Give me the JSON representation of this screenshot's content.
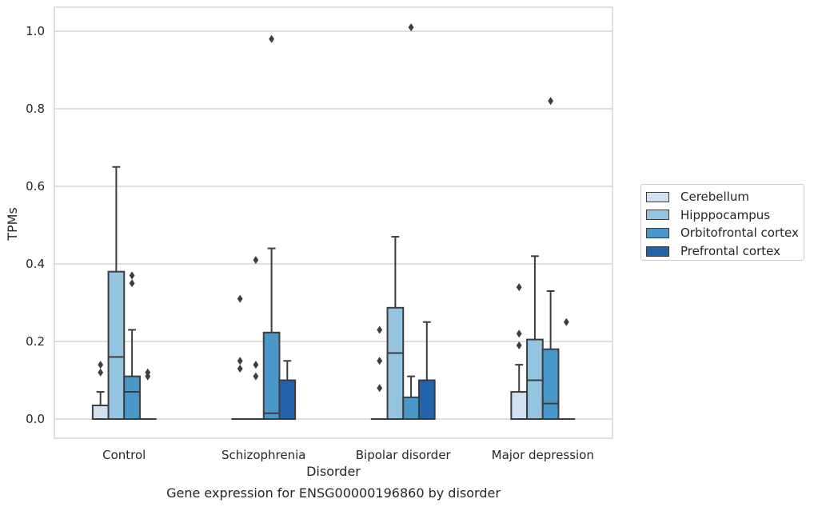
{
  "chart_data": {
    "type": "box",
    "title": "",
    "caption": "Gene expression for ENSG00000196860 by disorder",
    "xlabel": "Disorder",
    "ylabel": "TPMs",
    "ylim": [
      -0.05,
      1.06
    ],
    "yticks": [
      "0.0",
      "0.2",
      "0.4",
      "0.6",
      "0.8",
      "1.0"
    ],
    "ytick_values": [
      0.0,
      0.2,
      0.4,
      0.6,
      0.8,
      1.0
    ],
    "grid": true,
    "legend_position": "right",
    "categories": [
      "Control",
      "Schizophrenia",
      "Bipolar disorder",
      "Major depression"
    ],
    "series": [
      {
        "name": "Cerebellum",
        "color": "#d0e1f2",
        "boxes": [
          {
            "q1": 0.0,
            "median": 0.0,
            "q3": 0.035,
            "whislo": 0.0,
            "whishi": 0.07,
            "fliers": [
              0.12,
              0.14
            ]
          },
          {
            "q1": 0.0,
            "median": 0.0,
            "q3": 0.0,
            "whislo": 0.0,
            "whishi": 0.0,
            "fliers": [
              0.13,
              0.15,
              0.31
            ]
          },
          {
            "q1": 0.0,
            "median": 0.0,
            "q3": 0.0,
            "whislo": 0.0,
            "whishi": 0.0,
            "fliers": [
              0.08,
              0.15,
              0.23
            ]
          },
          {
            "q1": 0.0,
            "median": 0.0,
            "q3": 0.07,
            "whislo": 0.0,
            "whishi": 0.14,
            "fliers": [
              0.19,
              0.22,
              0.34
            ]
          }
        ]
      },
      {
        "name": "Hipppocampus",
        "color": "#94c4df",
        "boxes": [
          {
            "q1": 0.0,
            "median": 0.16,
            "q3": 0.38,
            "whislo": 0.0,
            "whishi": 0.65,
            "fliers": []
          },
          {
            "q1": 0.0,
            "median": 0.0,
            "q3": 0.0,
            "whislo": 0.0,
            "whishi": 0.0,
            "fliers": [
              0.11,
              0.14,
              0.41
            ]
          },
          {
            "q1": 0.0,
            "median": 0.17,
            "q3": 0.287,
            "whislo": 0.0,
            "whishi": 0.47,
            "fliers": []
          },
          {
            "q1": 0.0,
            "median": 0.1,
            "q3": 0.205,
            "whislo": 0.0,
            "whishi": 0.42,
            "fliers": []
          }
        ]
      },
      {
        "name": "Orbitofrontal cortex",
        "color": "#4a98c9",
        "boxes": [
          {
            "q1": 0.0,
            "median": 0.07,
            "q3": 0.11,
            "whislo": 0.0,
            "whishi": 0.23,
            "fliers": [
              0.35,
              0.37
            ]
          },
          {
            "q1": 0.0,
            "median": 0.015,
            "q3": 0.223,
            "whislo": 0.0,
            "whishi": 0.44,
            "fliers": [
              0.98
            ]
          },
          {
            "q1": 0.0,
            "median": 0.0,
            "q3": 0.056,
            "whislo": 0.0,
            "whishi": 0.11,
            "fliers": [
              1.01
            ]
          },
          {
            "q1": 0.0,
            "median": 0.04,
            "q3": 0.18,
            "whislo": 0.0,
            "whishi": 0.33,
            "fliers": [
              0.82
            ]
          }
        ]
      },
      {
        "name": "Prefrontal cortex",
        "color": "#2164ab",
        "boxes": [
          {
            "q1": 0.0,
            "median": 0.0,
            "q3": 0.0,
            "whislo": 0.0,
            "whishi": 0.0,
            "fliers": [
              0.11,
              0.12
            ]
          },
          {
            "q1": 0.0,
            "median": 0.0,
            "q3": 0.1,
            "whislo": 0.0,
            "whishi": 0.15,
            "fliers": []
          },
          {
            "q1": 0.0,
            "median": 0.0,
            "q3": 0.1,
            "whislo": 0.0,
            "whishi": 0.25,
            "fliers": []
          },
          {
            "q1": 0.0,
            "median": 0.0,
            "q3": 0.0,
            "whislo": 0.0,
            "whishi": 0.0,
            "fliers": [
              0.25
            ]
          }
        ]
      }
    ]
  }
}
